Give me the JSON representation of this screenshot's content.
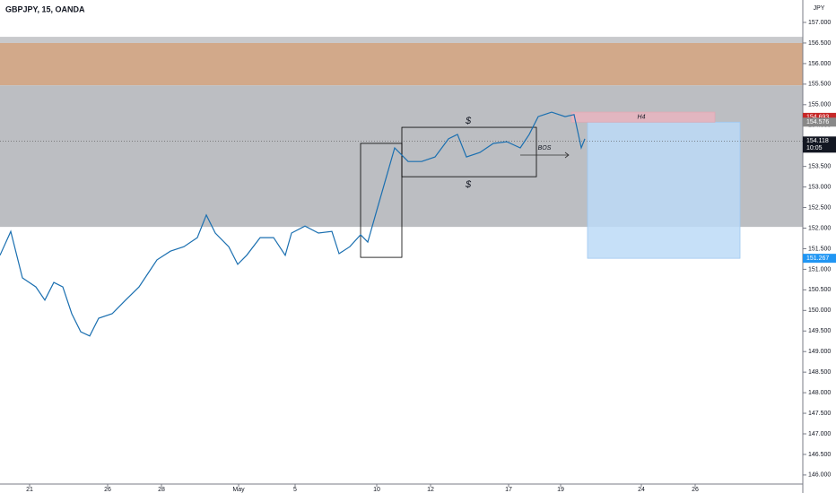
{
  "chart_data": {
    "type": "line",
    "title": "GBPJPY, 15, OANDA",
    "y_unit": "JPY",
    "color": "#1a6fb0",
    "x": [
      0,
      12,
      25,
      40,
      50,
      60,
      70,
      80,
      90,
      100,
      110,
      125,
      140,
      155,
      165,
      175,
      190,
      205,
      220,
      230,
      240,
      255,
      265,
      275,
      290,
      305,
      318,
      325,
      340,
      355,
      370,
      378,
      390,
      402,
      410,
      420,
      430,
      440,
      455,
      470,
      485,
      500,
      510,
      520,
      535,
      550,
      565,
      580,
      590,
      600,
      615,
      630,
      640,
      648,
      652
    ],
    "values": [
      151.34,
      151.92,
      150.79,
      150.57,
      150.25,
      150.68,
      150.57,
      149.92,
      149.48,
      149.38,
      149.81,
      149.92,
      150.25,
      150.57,
      150.9,
      151.23,
      151.44,
      151.55,
      151.77,
      152.32,
      151.88,
      151.55,
      151.12,
      151.34,
      151.77,
      151.77,
      151.34,
      151.88,
      152.05,
      151.88,
      151.92,
      151.38,
      151.55,
      151.84,
      151.66,
      152.43,
      153.19,
      153.95,
      153.62,
      153.62,
      153.73,
      154.17,
      154.28,
      153.73,
      153.84,
      154.06,
      154.1,
      153.95,
      154.28,
      154.71,
      154.82,
      154.71,
      154.76,
      153.95,
      154.17
    ],
    "xlim": [
      0,
      895
    ],
    "ylim": [
      145.78,
      157.545
    ],
    "xticks": [
      {
        "value": 33,
        "label": "21"
      },
      {
        "value": 120,
        "label": "26"
      },
      {
        "value": 180,
        "label": "28"
      },
      {
        "value": 266,
        "label": "May"
      },
      {
        "value": 329,
        "label": "5"
      },
      {
        "value": 420,
        "label": "10"
      },
      {
        "value": 480,
        "label": "12"
      },
      {
        "value": 567,
        "label": "17"
      },
      {
        "value": 625,
        "label": "19"
      },
      {
        "value": 715,
        "label": "24"
      },
      {
        "value": 775,
        "label": "26"
      }
    ],
    "yticks": [
      {
        "value": 146,
        "label": "146.000"
      },
      {
        "value": 146.5,
        "label": "146.500"
      },
      {
        "value": 147,
        "label": "147.000"
      },
      {
        "value": 147.5,
        "label": "147.500"
      },
      {
        "value": 148,
        "label": "148.000"
      },
      {
        "value": 148.5,
        "label": "148.500"
      },
      {
        "value": 149,
        "label": "149.000"
      },
      {
        "value": 149.5,
        "label": "149.500"
      },
      {
        "value": 150,
        "label": "150.000"
      },
      {
        "value": 150.5,
        "label": "150.500"
      },
      {
        "value": 151,
        "label": "151.000"
      },
      {
        "value": 151.5,
        "label": "151.500"
      },
      {
        "value": 152,
        "label": "152.000"
      },
      {
        "value": 152.5,
        "label": "152.500"
      },
      {
        "value": 153,
        "label": "153.000"
      },
      {
        "value": 153.5,
        "label": "153.500"
      },
      {
        "value": 154,
        "label": "154.000"
      },
      {
        "value": 154.5,
        "label": "154.500"
      },
      {
        "value": 155,
        "label": "155.000"
      },
      {
        "value": 155.5,
        "label": "155.500"
      },
      {
        "value": 156,
        "label": "156.000"
      },
      {
        "value": 156.5,
        "label": "156.500"
      },
      {
        "value": 157,
        "label": "157.000"
      }
    ],
    "zones": [
      {
        "ylim": [
          156.5,
          156.65
        ],
        "color": "#c8c9cc"
      },
      {
        "ylim": [
          155.47,
          156.5
        ],
        "color": "#d2a98a"
      },
      {
        "ylim": [
          152.03,
          155.47
        ],
        "color": "#bcbec2"
      }
    ],
    "boxes": [
      {
        "xlim": [
          402,
          448
        ],
        "ylim": [
          151.29,
          154.06
        ],
        "color": "#000000",
        "fill": "none"
      },
      {
        "xlim": [
          448,
          598
        ],
        "ylim": [
          153.25,
          154.45
        ],
        "color": "#000000",
        "fill": "none"
      },
      {
        "xlim": [
          655,
          825
        ],
        "ylim": [
          151.267,
          154.576
        ],
        "color": "#9ec8f0",
        "fill": "#bcdaf7"
      },
      {
        "xlim": [
          637,
          797
        ],
        "ylim": [
          154.576,
          154.82
        ],
        "color": "#e0a8b4",
        "fill": "#e9b5c0"
      }
    ],
    "annotations": [
      {
        "text": "$",
        "x": 522,
        "y": 154.6
      },
      {
        "text": "$",
        "x": 522,
        "y": 153.05
      },
      {
        "text": "BOS",
        "x": 607,
        "y": 153.95
      },
      {
        "text": "H4",
        "x": 715,
        "y": 154.7
      }
    ],
    "current_price": 154.118,
    "price_labels": [
      {
        "value": 154.693,
        "label": "154.693",
        "color": "#c62828"
      },
      {
        "value": 154.576,
        "label": "154.576",
        "color": "#888888"
      },
      {
        "value": 154.118,
        "label": "154.118",
        "color": "#131722",
        "sub": "10:05"
      },
      {
        "value": 151.267,
        "label": "151.267",
        "color": "#2196f3"
      }
    ]
  }
}
